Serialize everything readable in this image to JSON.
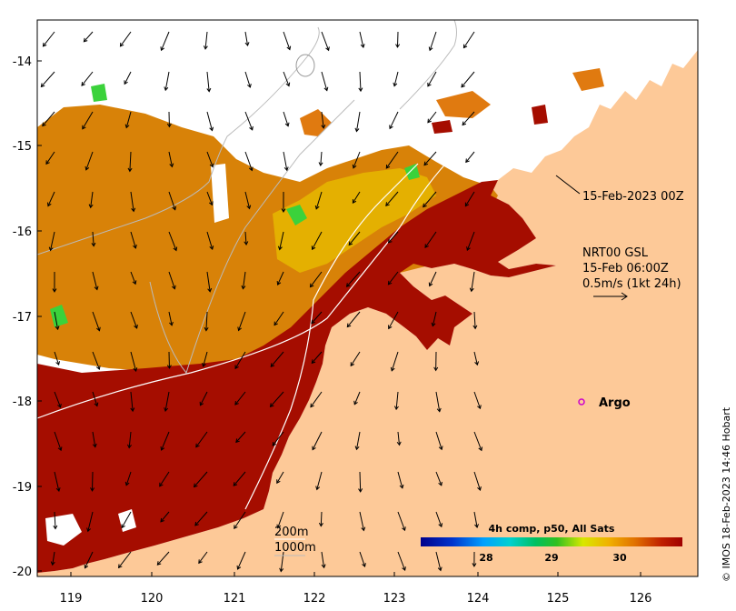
{
  "map": {
    "lon_ticks": [
      "119",
      "120",
      "121",
      "122",
      "123",
      "124",
      "125",
      "126"
    ],
    "lat_ticks": [
      "-14",
      "-15",
      "-16",
      "-17",
      "-18",
      "-19",
      "-20"
    ],
    "lon_range": [
      118.6,
      126.8
    ],
    "lat_range": [
      -20.1,
      -13.4
    ]
  },
  "annotations": {
    "date_label": "15-Feb-2023 00Z",
    "current_model": "NRT00 GSL",
    "current_time": "15-Feb 06:00Z",
    "vector_scale": "0.5m/s (1kt 24h)",
    "argo_label": "Argo",
    "depth_200": "200m",
    "depth_1000": "1000m"
  },
  "colorbar": {
    "title": "4h comp, p50, All Sats",
    "ticks": [
      "28",
      "29",
      "30"
    ]
  },
  "credit": "© IMOS 18-Feb-2023 14:46 Hobart",
  "colors": {
    "land": "#fdc998",
    "hot": "#a50d00",
    "warm": "#d77a08",
    "yellow": "#e8c400",
    "green": "#3bd23b",
    "argo": "#cc00cc"
  }
}
